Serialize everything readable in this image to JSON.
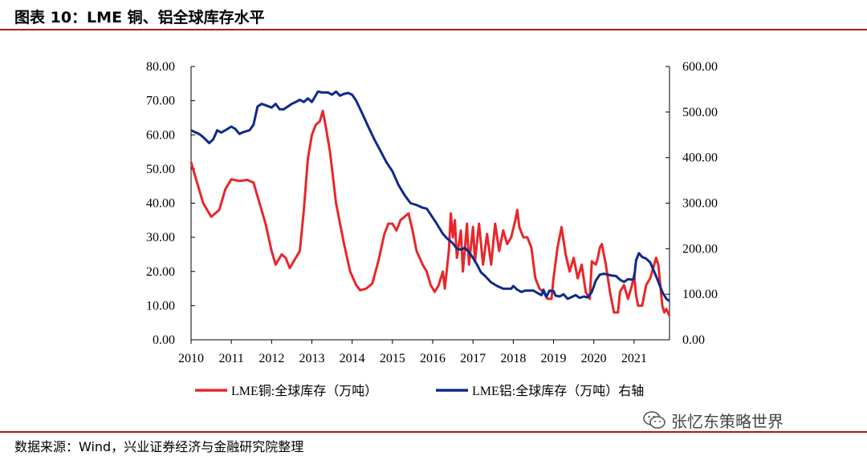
{
  "figure": {
    "title": "图表 10：LME 铜、铝全球库存水平",
    "source": "数据来源：Wind，兴业证券经济与金融研究院整理",
    "watermark": "张忆东策略世界",
    "watermark_icon": "wechat-icon"
  },
  "chart_data": {
    "type": "line",
    "title": "图表 10：LME 铜、铝全球库存水平",
    "x_tick_labels": [
      "2010",
      "2011",
      "2012",
      "2013",
      "2014",
      "2015",
      "2016",
      "2017",
      "2018",
      "2019",
      "2020",
      "2021"
    ],
    "x_range": [
      2010.0,
      2021.88
    ],
    "left_axis": {
      "range": [
        0,
        80
      ],
      "ticks": [
        "0.00",
        "10.00",
        "20.00",
        "30.00",
        "40.00",
        "50.00",
        "60.00",
        "70.00",
        "80.00"
      ]
    },
    "right_axis": {
      "range": [
        0,
        600
      ],
      "ticks": [
        "0.00",
        "100.00",
        "200.00",
        "300.00",
        "400.00",
        "500.00",
        "600.00"
      ]
    },
    "legend_position": "bottom",
    "series": [
      {
        "name": "LME铜:全球库存（万吨）",
        "axis": "left",
        "color": "#e8262a",
        "points": [
          [
            2010.0,
            52
          ],
          [
            2010.15,
            46
          ],
          [
            2010.3,
            40
          ],
          [
            2010.5,
            36
          ],
          [
            2010.7,
            38
          ],
          [
            2010.85,
            44
          ],
          [
            2011.0,
            47
          ],
          [
            2011.2,
            46.5
          ],
          [
            2011.4,
            46.8
          ],
          [
            2011.55,
            46
          ],
          [
            2011.7,
            40
          ],
          [
            2011.85,
            34
          ],
          [
            2012.0,
            26
          ],
          [
            2012.1,
            22
          ],
          [
            2012.25,
            25
          ],
          [
            2012.35,
            24
          ],
          [
            2012.45,
            21
          ],
          [
            2012.55,
            23
          ],
          [
            2012.7,
            26
          ],
          [
            2012.8,
            38
          ],
          [
            2012.9,
            53
          ],
          [
            2013.0,
            60
          ],
          [
            2013.1,
            63
          ],
          [
            2013.2,
            64
          ],
          [
            2013.27,
            67
          ],
          [
            2013.35,
            62
          ],
          [
            2013.45,
            55
          ],
          [
            2013.6,
            40
          ],
          [
            2013.8,
            28
          ],
          [
            2013.95,
            20
          ],
          [
            2014.1,
            16
          ],
          [
            2014.2,
            14.5
          ],
          [
            2014.35,
            15
          ],
          [
            2014.5,
            16.5
          ],
          [
            2014.65,
            23
          ],
          [
            2014.8,
            31
          ],
          [
            2014.9,
            34
          ],
          [
            2015.0,
            34
          ],
          [
            2015.1,
            32
          ],
          [
            2015.2,
            35
          ],
          [
            2015.3,
            36
          ],
          [
            2015.4,
            37
          ],
          [
            2015.5,
            32
          ],
          [
            2015.6,
            26
          ],
          [
            2015.75,
            22
          ],
          [
            2015.85,
            20
          ],
          [
            2015.95,
            16
          ],
          [
            2016.05,
            14
          ],
          [
            2016.15,
            16
          ],
          [
            2016.25,
            20
          ],
          [
            2016.3,
            15
          ],
          [
            2016.4,
            26
          ],
          [
            2016.45,
            37
          ],
          [
            2016.5,
            30
          ],
          [
            2016.55,
            35
          ],
          [
            2016.6,
            24
          ],
          [
            2016.7,
            32
          ],
          [
            2016.75,
            20
          ],
          [
            2016.85,
            34
          ],
          [
            2016.9,
            22
          ],
          [
            2017.0,
            33
          ],
          [
            2017.05,
            23
          ],
          [
            2017.15,
            34
          ],
          [
            2017.25,
            22
          ],
          [
            2017.35,
            31
          ],
          [
            2017.45,
            22
          ],
          [
            2017.55,
            34
          ],
          [
            2017.65,
            26
          ],
          [
            2017.75,
            32
          ],
          [
            2017.85,
            28
          ],
          [
            2017.95,
            30
          ],
          [
            2018.05,
            35
          ],
          [
            2018.1,
            38
          ],
          [
            2018.15,
            33
          ],
          [
            2018.25,
            30
          ],
          [
            2018.35,
            30
          ],
          [
            2018.45,
            27
          ],
          [
            2018.55,
            18
          ],
          [
            2018.65,
            15
          ],
          [
            2018.75,
            14
          ],
          [
            2018.85,
            12
          ],
          [
            2018.95,
            12
          ],
          [
            2019.0,
            18
          ],
          [
            2019.1,
            27
          ],
          [
            2019.2,
            33
          ],
          [
            2019.3,
            25
          ],
          [
            2019.4,
            20
          ],
          [
            2019.5,
            24
          ],
          [
            2019.6,
            18
          ],
          [
            2019.7,
            22
          ],
          [
            2019.8,
            14
          ],
          [
            2019.9,
            12
          ],
          [
            2019.95,
            23
          ],
          [
            2020.05,
            22
          ],
          [
            2020.1,
            24
          ],
          [
            2020.15,
            27
          ],
          [
            2020.2,
            28
          ],
          [
            2020.3,
            22
          ],
          [
            2020.4,
            14
          ],
          [
            2020.5,
            8
          ],
          [
            2020.6,
            8
          ],
          [
            2020.65,
            14
          ],
          [
            2020.75,
            16
          ],
          [
            2020.85,
            12
          ],
          [
            2020.95,
            16
          ],
          [
            2021.0,
            19
          ],
          [
            2021.05,
            13
          ],
          [
            2021.1,
            10
          ],
          [
            2021.2,
            10
          ],
          [
            2021.3,
            16
          ],
          [
            2021.4,
            18
          ],
          [
            2021.5,
            22
          ],
          [
            2021.55,
            24
          ],
          [
            2021.6,
            22
          ],
          [
            2021.65,
            16
          ],
          [
            2021.7,
            10
          ],
          [
            2021.75,
            8
          ],
          [
            2021.8,
            9
          ],
          [
            2021.88,
            7
          ]
        ]
      },
      {
        "name": "LME铝:全球库存（万吨）右轴",
        "axis": "right",
        "color": "#0e2a8a",
        "points": [
          [
            2010.0,
            460
          ],
          [
            2010.2,
            452
          ],
          [
            2010.3,
            445
          ],
          [
            2010.45,
            432
          ],
          [
            2010.55,
            440
          ],
          [
            2010.65,
            460
          ],
          [
            2010.75,
            455
          ],
          [
            2010.85,
            460
          ],
          [
            2011.0,
            468
          ],
          [
            2011.1,
            463
          ],
          [
            2011.2,
            452
          ],
          [
            2011.3,
            456
          ],
          [
            2011.45,
            460
          ],
          [
            2011.55,
            472
          ],
          [
            2011.65,
            512
          ],
          [
            2011.75,
            518
          ],
          [
            2011.85,
            515
          ],
          [
            2012.0,
            510
          ],
          [
            2012.1,
            518
          ],
          [
            2012.2,
            506
          ],
          [
            2012.3,
            506
          ],
          [
            2012.4,
            512
          ],
          [
            2012.5,
            518
          ],
          [
            2012.6,
            522
          ],
          [
            2012.7,
            527
          ],
          [
            2012.8,
            522
          ],
          [
            2012.9,
            530
          ],
          [
            2013.0,
            522
          ],
          [
            2013.1,
            537
          ],
          [
            2013.15,
            545
          ],
          [
            2013.25,
            543
          ],
          [
            2013.4,
            543
          ],
          [
            2013.5,
            538
          ],
          [
            2013.6,
            545
          ],
          [
            2013.7,
            536
          ],
          [
            2013.8,
            540
          ],
          [
            2013.9,
            542
          ],
          [
            2014.0,
            538
          ],
          [
            2014.1,
            525
          ],
          [
            2014.25,
            497
          ],
          [
            2014.4,
            468
          ],
          [
            2014.55,
            440
          ],
          [
            2014.7,
            415
          ],
          [
            2014.85,
            390
          ],
          [
            2015.0,
            370
          ],
          [
            2015.15,
            340
          ],
          [
            2015.3,
            318
          ],
          [
            2015.45,
            300
          ],
          [
            2015.6,
            296
          ],
          [
            2015.75,
            290
          ],
          [
            2015.85,
            288
          ],
          [
            2015.95,
            275
          ],
          [
            2016.1,
            255
          ],
          [
            2016.25,
            233
          ],
          [
            2016.35,
            223
          ],
          [
            2016.5,
            212
          ],
          [
            2016.6,
            200
          ],
          [
            2016.7,
            198
          ],
          [
            2016.8,
            202
          ],
          [
            2016.9,
            192
          ],
          [
            2017.0,
            180
          ],
          [
            2017.1,
            165
          ],
          [
            2017.2,
            148
          ],
          [
            2017.3,
            140
          ],
          [
            2017.45,
            126
          ],
          [
            2017.6,
            118
          ],
          [
            2017.75,
            112
          ],
          [
            2017.85,
            112
          ],
          [
            2017.95,
            112
          ],
          [
            2018.0,
            118
          ],
          [
            2018.1,
            110
          ],
          [
            2018.2,
            105
          ],
          [
            2018.3,
            108
          ],
          [
            2018.4,
            108
          ],
          [
            2018.5,
            108
          ],
          [
            2018.6,
            103
          ],
          [
            2018.7,
            98
          ],
          [
            2018.75,
            110
          ],
          [
            2018.82,
            94
          ],
          [
            2018.9,
            108
          ],
          [
            2019.0,
            107
          ],
          [
            2019.05,
            97
          ],
          [
            2019.15,
            95
          ],
          [
            2019.25,
            100
          ],
          [
            2019.35,
            90
          ],
          [
            2019.45,
            94
          ],
          [
            2019.55,
            98
          ],
          [
            2019.65,
            92
          ],
          [
            2019.75,
            95
          ],
          [
            2019.85,
            93
          ],
          [
            2019.95,
            105
          ],
          [
            2020.05,
            130
          ],
          [
            2020.15,
            143
          ],
          [
            2020.25,
            145
          ],
          [
            2020.35,
            143
          ],
          [
            2020.45,
            141
          ],
          [
            2020.55,
            140
          ],
          [
            2020.65,
            132
          ],
          [
            2020.75,
            127
          ],
          [
            2020.85,
            133
          ],
          [
            2020.95,
            132
          ],
          [
            2021.0,
            135
          ],
          [
            2021.05,
            175
          ],
          [
            2021.12,
            190
          ],
          [
            2021.2,
            182
          ],
          [
            2021.3,
            178
          ],
          [
            2021.4,
            170
          ],
          [
            2021.5,
            150
          ],
          [
            2021.6,
            128
          ],
          [
            2021.7,
            105
          ],
          [
            2021.8,
            90
          ],
          [
            2021.88,
            85
          ]
        ]
      }
    ]
  }
}
